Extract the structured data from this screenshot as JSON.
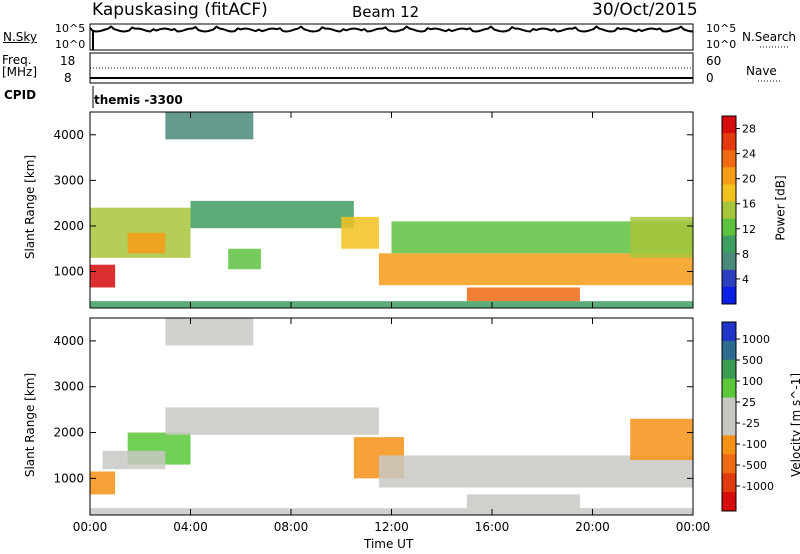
{
  "header": {
    "station": "Kapuskasing (fitACF)",
    "beam": "Beam 12",
    "date": "30/Oct/2015"
  },
  "status_panels": {
    "nsky_label": "N.Sky",
    "nsky_ticks": [
      "10^5",
      "10^0"
    ],
    "nsearch_label": "N.Search",
    "freq_label": "Freq.",
    "freq_unit": "[MHz]",
    "freq_ticks": [
      "18",
      "8"
    ],
    "nave_label": "Nave",
    "nave_ticks": [
      "60",
      "0"
    ],
    "cpid_label": "CPID",
    "cpid_value": "themis -3300"
  },
  "colors": {
    "power": [
      "#0a1ee6",
      "#2b3fbf",
      "#4a8a7a",
      "#3e9e60",
      "#5dc23e",
      "#a8c63c",
      "#f2c21e",
      "#f59b16",
      "#ef6a12",
      "#e43a10",
      "#d60b0b"
    ],
    "velocity": [
      "#1f35c7",
      "#2c6b8f",
      "#3b9b54",
      "#5ac83a",
      "#c8c8c3",
      "#c8c8c3",
      "#f59216",
      "#ef6a12",
      "#e03a10",
      "#d60b0b"
    ],
    "velocity_ground": "#c8c8c3"
  },
  "chart_data": [
    {
      "type": "heatmap",
      "panel": "power",
      "ylabel": "Slant Range [km]",
      "ylim": [
        200,
        4500
      ],
      "yticks": [
        "1000",
        "2000",
        "3000",
        "4000"
      ],
      "xlim": [
        0,
        24
      ],
      "xticks": [
        "00:00",
        "04:00",
        "08:00",
        "12:00",
        "16:00",
        "20:00",
        "00:00"
      ],
      "colorbar": {
        "label": "Power [dB]",
        "range": [
          0,
          30
        ],
        "ticks": [
          "4",
          "8",
          "12",
          "16",
          "20",
          "24",
          "28"
        ]
      },
      "regions": [
        {
          "t": [
            0.0,
            1.0
          ],
          "r": [
            650,
            1150
          ],
          "value": 28
        },
        {
          "t": [
            0.0,
            4.0
          ],
          "r": [
            1300,
            2400
          ],
          "value": 14
        },
        {
          "t": [
            1.5,
            3.0
          ],
          "r": [
            1400,
            1850
          ],
          "value": 20
        },
        {
          "t": [
            4.0,
            10.5
          ],
          "r": [
            1950,
            2550
          ],
          "value": 10
        },
        {
          "t": [
            5.5,
            6.8
          ],
          "r": [
            1050,
            1500
          ],
          "value": 12
        },
        {
          "t": [
            10.0,
            11.5
          ],
          "r": [
            1500,
            2200
          ],
          "value": 18
        },
        {
          "t": [
            11.5,
            24.0
          ],
          "r": [
            700,
            1400
          ],
          "value": 20
        },
        {
          "t": [
            12.0,
            24.0
          ],
          "r": [
            1400,
            2100
          ],
          "value": 12
        },
        {
          "t": [
            15.0,
            19.5
          ],
          "r": [
            350,
            650
          ],
          "value": 24
        },
        {
          "t": [
            21.5,
            24.0
          ],
          "r": [
            1300,
            2200
          ],
          "value": 16
        },
        {
          "t": [
            3.0,
            6.5
          ],
          "r": [
            3900,
            4500
          ],
          "value": 6
        },
        {
          "t": [
            0.0,
            24.0
          ],
          "r": [
            200,
            350
          ],
          "value": 10
        }
      ]
    },
    {
      "type": "heatmap",
      "panel": "velocity",
      "ylabel": "Slant Range [km]",
      "xlabel": "Time UT",
      "ylim": [
        200,
        4500
      ],
      "yticks": [
        "1000",
        "2000",
        "3000",
        "4000"
      ],
      "xlim": [
        0,
        24
      ],
      "xticks": [
        "00:00",
        "04:00",
        "08:00",
        "12:00",
        "16:00",
        "20:00",
        "00:00"
      ],
      "colorbar": {
        "label": "Velocity [m s^-1]",
        "ticks": [
          "1000",
          "500",
          "100",
          "25",
          "-25",
          "-100",
          "-500",
          "-1000"
        ]
      },
      "regions": [
        {
          "t": [
            0.0,
            1.0
          ],
          "r": [
            650,
            1150
          ],
          "value": -300
        },
        {
          "t": [
            1.5,
            4.0
          ],
          "r": [
            1300,
            2000
          ],
          "value": 80
        },
        {
          "t": [
            3.0,
            11.5
          ],
          "r": [
            1950,
            2550
          ],
          "value": 0
        },
        {
          "t": [
            0.5,
            3.0
          ],
          "r": [
            1200,
            1600
          ],
          "value": 0
        },
        {
          "t": [
            10.5,
            12.5
          ],
          "r": [
            1000,
            1900
          ],
          "value": -150
        },
        {
          "t": [
            11.5,
            24.0
          ],
          "r": [
            800,
            1500
          ],
          "value": 0
        },
        {
          "t": [
            15.0,
            19.5
          ],
          "r": [
            350,
            650
          ],
          "value": 0
        },
        {
          "t": [
            21.5,
            24.0
          ],
          "r": [
            1400,
            2300
          ],
          "value": -120
        },
        {
          "t": [
            3.0,
            6.5
          ],
          "r": [
            3900,
            4500
          ],
          "value": 0
        },
        {
          "t": [
            0.0,
            24.0
          ],
          "r": [
            200,
            350
          ],
          "value": 0
        }
      ]
    }
  ]
}
